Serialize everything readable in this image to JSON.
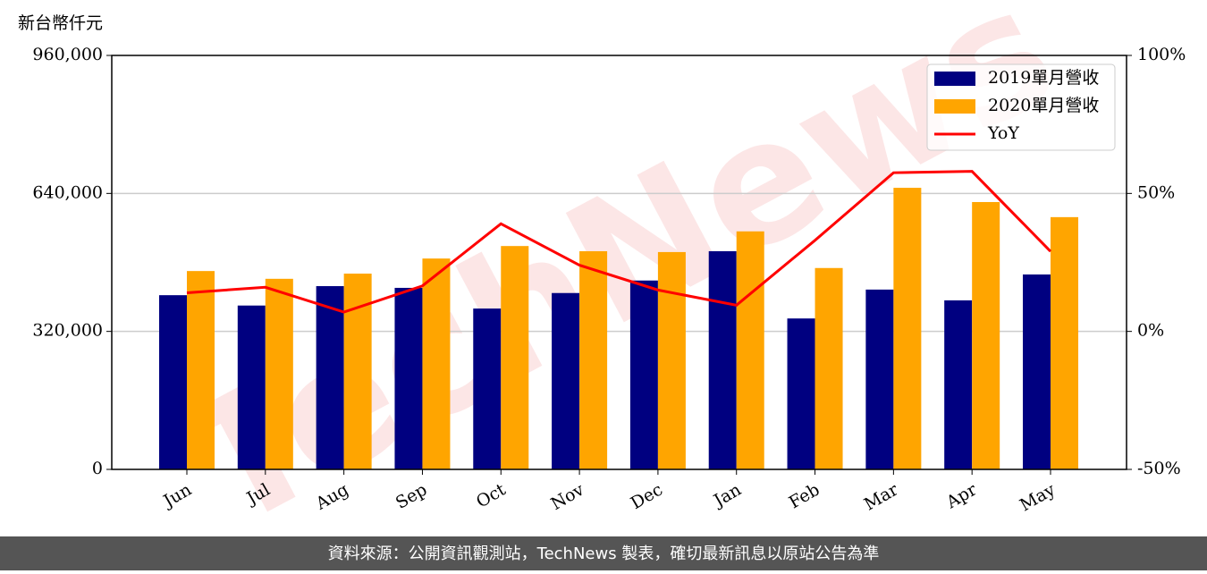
{
  "chart_data": {
    "type": "bar",
    "y_label": "新台幣仟元",
    "watermark": "TechNews",
    "footer": "資料來源：公開資訊觀測站，TechNews 製表，確切最新訊息以原站公告為準",
    "categories": [
      "Jun",
      "Jul",
      "Aug",
      "Sep",
      "Oct",
      "Nov",
      "Dec",
      "Jan",
      "Feb",
      "Mar",
      "Apr",
      "May"
    ],
    "series": [
      {
        "name": "2019單月營收",
        "color": "#000080",
        "values": [
          404000,
          380000,
          425000,
          421000,
          373000,
          409000,
          438000,
          506000,
          350000,
          417000,
          392000,
          452000
        ]
      },
      {
        "name": "2020單月營收",
        "color": "#ffa500",
        "values": [
          460000,
          442000,
          454000,
          489000,
          518000,
          506000,
          504000,
          552000,
          467000,
          653000,
          620000,
          585000
        ]
      },
      {
        "name": "YoY",
        "color": "#ff0000",
        "type": "line",
        "axis": "y2",
        "values": [
          14,
          16,
          7,
          16.5,
          39,
          24,
          15,
          9.5,
          33,
          57.5,
          58,
          29
        ]
      }
    ],
    "ylim": [
      0,
      960000
    ],
    "yticks": [
      0,
      {
        "value": 320000,
        "label": "320,000"
      },
      {
        "value": 640000,
        "label": "640,000"
      },
      {
        "value": 960000,
        "label": "960,000"
      }
    ],
    "y2lim": [
      -50,
      100
    ],
    "y2ticks": [
      {
        "value": -50,
        "label": "-50%"
      },
      {
        "value": 0,
        "label": "0%"
      },
      {
        "value": 50,
        "label": "50%"
      },
      {
        "value": 100,
        "label": "100%"
      }
    ],
    "grid": true,
    "legend": "upper right"
  }
}
